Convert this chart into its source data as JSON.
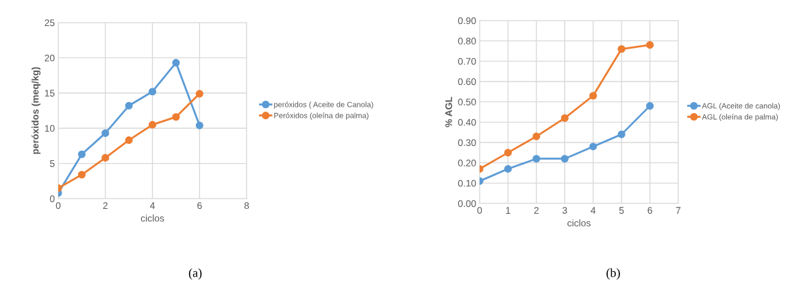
{
  "chart_data": [
    {
      "type": "line",
      "xlabel": "ciclos",
      "ylabel": "peróxidos (meq/kg)",
      "x": [
        0,
        1,
        2,
        3,
        4,
        5,
        6
      ],
      "series": [
        {
          "name": "peróxidos ( Aceite de Canola)",
          "color": "#5b9bd5",
          "values": [
            0.8,
            6.3,
            9.3,
            13.2,
            15.2,
            19.3,
            10.4
          ]
        },
        {
          "name": "Peróxidos (oleína de palma)",
          "color": "#ed7d31",
          "values": [
            1.5,
            3.4,
            5.8,
            8.3,
            10.5,
            11.6,
            14.9
          ]
        }
      ],
      "xlim": [
        0,
        8
      ],
      "xticks": [
        0,
        2,
        4,
        6,
        8
      ],
      "ylim": [
        0,
        25
      ],
      "yticks": [
        0,
        5,
        10,
        15,
        20,
        25
      ],
      "grid": true,
      "legend": "right",
      "marker": "circle",
      "line_style": "solid",
      "annotations": [
        "(a)"
      ]
    },
    {
      "type": "line",
      "xlabel": "ciclos",
      "ylabel": "% AGL",
      "x": [
        0,
        1,
        2,
        3,
        4,
        5,
        6
      ],
      "series": [
        {
          "name": "AGL (Aceite de canola)",
          "color": "#5b9bd5",
          "values": [
            0.11,
            0.17,
            0.22,
            0.22,
            0.28,
            0.34,
            0.48
          ]
        },
        {
          "name": "AGL (oleína de palma)",
          "color": "#ed7d31",
          "values": [
            0.17,
            0.25,
            0.33,
            0.42,
            0.53,
            0.76,
            0.78
          ]
        }
      ],
      "xlim": [
        0,
        7
      ],
      "xticks": [
        0,
        1,
        2,
        3,
        4,
        5,
        6,
        7
      ],
      "ylim": [
        0,
        0.9
      ],
      "yticks": [
        {
          "value": 0,
          "label": "0.00"
        },
        {
          "value": 0.1,
          "label": "0.10"
        },
        {
          "value": 0.2,
          "label": "0.20"
        },
        {
          "value": 0.3,
          "label": "0.30"
        },
        {
          "value": 0.4,
          "label": "0.40"
        },
        {
          "value": 0.5,
          "label": "0.50"
        },
        {
          "value": 0.6,
          "label": "0.60"
        },
        {
          "value": 0.7,
          "label": "0.70"
        },
        {
          "value": 0.8,
          "label": "0.80"
        },
        {
          "value": 0.9,
          "label": "0.90"
        }
      ],
      "grid": true,
      "legend": "right",
      "marker": "circle",
      "line_style": "solid",
      "annotations": [
        "(b)"
      ]
    }
  ]
}
